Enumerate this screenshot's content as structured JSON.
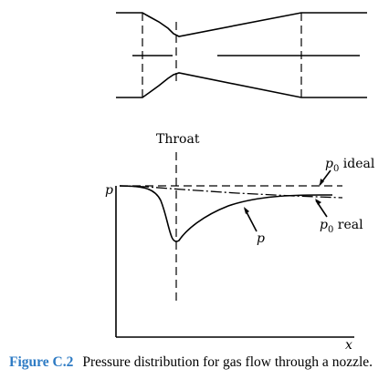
{
  "figure": {
    "throat_label": "Throat",
    "p_axis_label": "p",
    "x_axis_label": "x",
    "p0_ideal_label": "p",
    "p0_ideal_sub": "0",
    "p0_ideal_suffix": " ideal",
    "p0_real_label": "p",
    "p0_real_sub": "0",
    "p0_real_suffix": " real",
    "curve_p_label": "p"
  },
  "caption": {
    "label": "Figure C.2",
    "text": "Pressure distribution for gas flow through a nozzle."
  }
}
